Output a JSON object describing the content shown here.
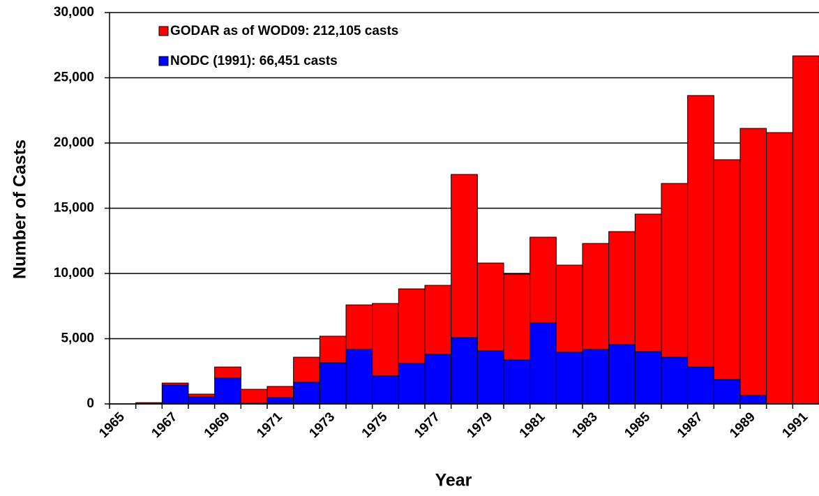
{
  "chart_data": {
    "type": "stacked_bar",
    "xlabel": "Year",
    "ylabel": "Number of Casts",
    "categories": [
      "1965",
      null,
      "1967",
      null,
      "1969",
      null,
      "1971",
      null,
      "1973",
      null,
      "1975",
      null,
      "1977",
      null,
      "1979",
      null,
      "1981",
      null,
      "1983",
      null,
      "1985",
      null,
      "1987",
      null,
      "1989",
      null,
      "1991"
    ],
    "series": [
      {
        "name": "NODC (1991): 66,451 casts",
        "color": "#0000ff",
        "values": [
          0,
          0,
          1450,
          530,
          1980,
          50,
          480,
          1660,
          3150,
          4170,
          2140,
          3100,
          3800,
          5080,
          4060,
          3370,
          6200,
          3960,
          4170,
          4550,
          4010,
          3580,
          2830,
          1870,
          640,
          0,
          0
        ]
      },
      {
        "name": "GODAR as of WOD09: 212,105 casts",
        "color": "#ff0000",
        "values": [
          0,
          100,
          150,
          220,
          850,
          1070,
          860,
          1920,
          2040,
          3420,
          5560,
          5720,
          5290,
          12510,
          6740,
          6580,
          6580,
          6680,
          8130,
          8660,
          10540,
          13320,
          20810,
          16850,
          20480,
          20800,
          26680
        ]
      }
    ],
    "ylim": [
      0,
      30000
    ],
    "yticks": [
      0,
      {
        "value": 5000,
        "label": "5,000"
      },
      {
        "value": 10000,
        "label": "10,000"
      },
      {
        "value": 15000,
        "label": "15,000"
      },
      {
        "value": 20000,
        "label": "20,000"
      },
      {
        "value": 25000,
        "label": "25,000"
      },
      {
        "value": 30000,
        "label": "30,000"
      }
    ],
    "grid": true
  }
}
